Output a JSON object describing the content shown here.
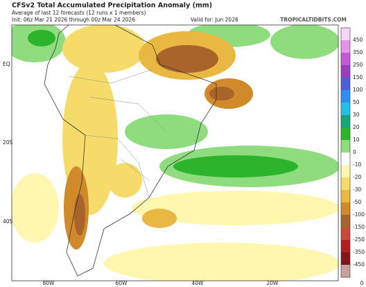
{
  "header": {
    "title": "CFSv2 Total Accumulated Precipitation Anomaly (mm)",
    "subtitle": "Average of last 12 forecasts (12 runs x 1 members)",
    "init": "Init: 06z Mar 21 2026 through 00z Mar 24 2026",
    "valid": "Valid for: Jun 2026",
    "source": "TROPICALTIDBITS.COM"
  },
  "map": {
    "lat_labels": [
      "EQ",
      "20S",
      "40S"
    ],
    "lon_labels": [
      "80W",
      "60W",
      "40W",
      "20W",
      "0"
    ]
  },
  "colorbar": {
    "labels": [
      450,
      350,
      250,
      150,
      100,
      50,
      30,
      20,
      10,
      0,
      -10,
      -20,
      -30,
      -50,
      -100,
      -150,
      -250,
      -350,
      -450
    ],
    "colors": [
      "#f5d5f5",
      "#e296e8",
      "#c459d4",
      "#9b3fbf",
      "#4b5fd6",
      "#2e8ef0",
      "#23c0e6",
      "#17a67a",
      "#2cb52c",
      "#8fdc7f",
      "#ffffff",
      "#fff6b0",
      "#f5dc6a",
      "#e8b840",
      "#d08a2a",
      "#a8642a",
      "#c84a3a",
      "#b02020",
      "#801818",
      "#c8a0a0"
    ]
  }
}
